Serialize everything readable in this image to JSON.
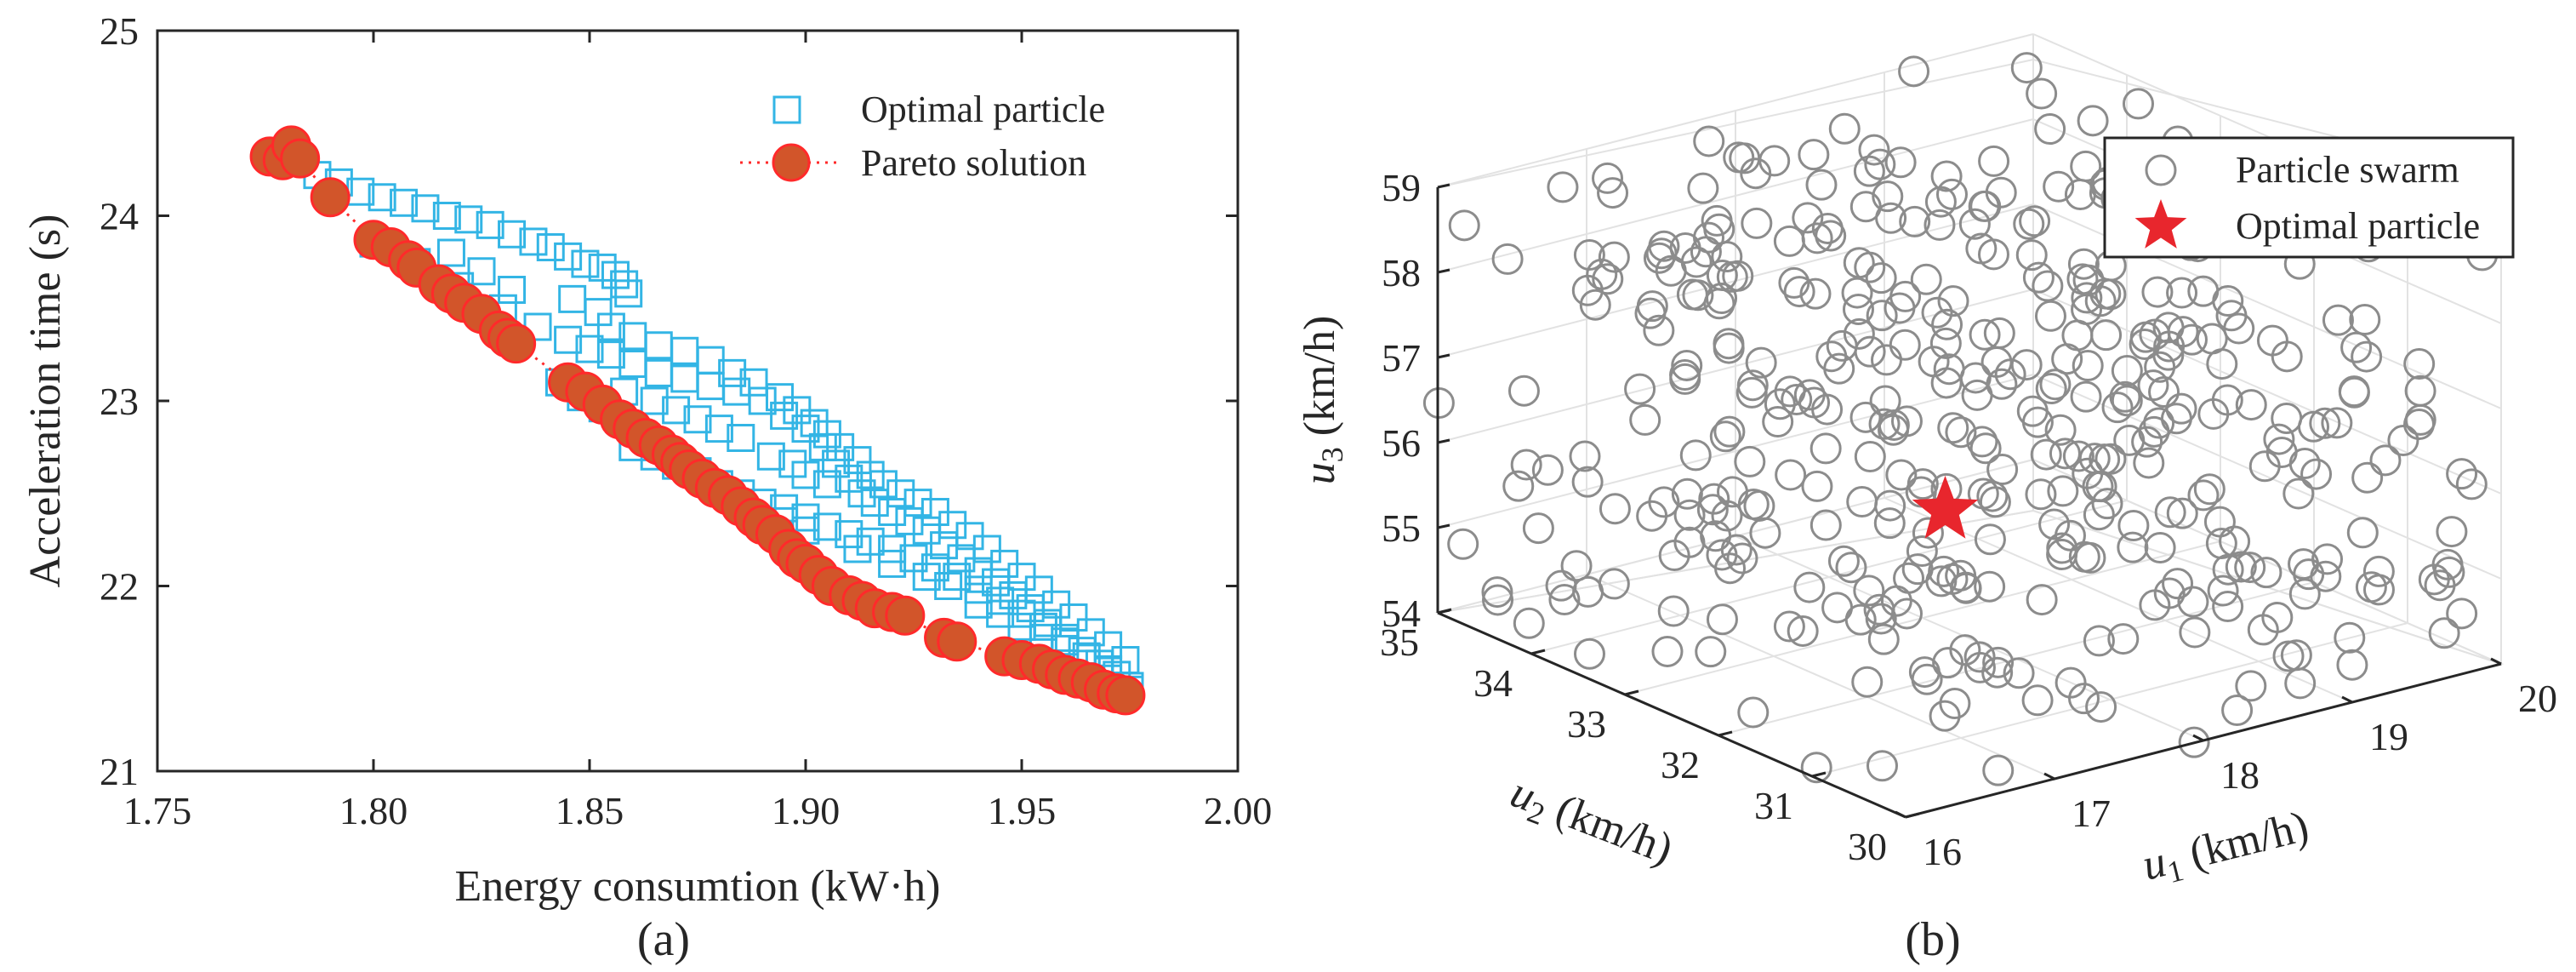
{
  "chart_data": [
    {
      "type": "scatter",
      "caption": "(a)",
      "xlabel": "Energy consumtion (kW·h)",
      "ylabel": "Acceleration time (s)",
      "xlim": [
        1.75,
        2.0
      ],
      "ylim": [
        21,
        25
      ],
      "xticks": [
        "1.75",
        "1.80",
        "1.85",
        "1.90",
        "1.95",
        "2.00"
      ],
      "yticks": [
        "21",
        "22",
        "23",
        "24",
        "25"
      ],
      "legend_position": "top-right",
      "series": [
        {
          "name": "Optimal particle",
          "marker": "square",
          "color": "#33b5e5",
          "points": [
            [
              1.782,
              24.3
            ],
            [
              1.787,
              24.22
            ],
            [
              1.792,
              24.18
            ],
            [
              1.797,
              24.13
            ],
            [
              1.802,
              24.1
            ],
            [
              1.807,
              24.07
            ],
            [
              1.812,
              24.04
            ],
            [
              1.817,
              24.0
            ],
            [
              1.822,
              23.98
            ],
            [
              1.827,
              23.95
            ],
            [
              1.832,
              23.9
            ],
            [
              1.837,
              23.86
            ],
            [
              1.841,
              23.83
            ],
            [
              1.845,
              23.78
            ],
            [
              1.849,
              23.74
            ],
            [
              1.853,
              23.72
            ],
            [
              1.856,
              23.68
            ],
            [
              1.858,
              23.63
            ],
            [
              1.859,
              23.58
            ],
            [
              1.8,
              23.85
            ],
            [
              1.81,
              23.75
            ],
            [
              1.82,
              23.62
            ],
            [
              1.83,
              23.5
            ],
            [
              1.838,
              23.4
            ],
            [
              1.845,
              23.33
            ],
            [
              1.85,
              23.28
            ],
            [
              1.855,
              23.25
            ],
            [
              1.86,
              23.2
            ],
            [
              1.866,
              23.15
            ],
            [
              1.872,
              23.12
            ],
            [
              1.878,
              23.08
            ],
            [
              1.884,
              23.05
            ],
            [
              1.89,
              23.0
            ],
            [
              1.895,
              22.92
            ],
            [
              1.9,
              22.85
            ],
            [
              1.904,
              22.75
            ],
            [
              1.907,
              22.66
            ],
            [
              1.91,
              22.58
            ],
            [
              1.913,
              22.5
            ],
            [
              1.916,
              22.45
            ],
            [
              1.92,
              22.4
            ],
            [
              1.924,
              22.35
            ],
            [
              1.928,
              22.3
            ],
            [
              1.932,
              22.22
            ],
            [
              1.936,
              22.15
            ],
            [
              1.94,
              22.08
            ],
            [
              1.944,
              22.02
            ],
            [
              1.948,
              21.95
            ],
            [
              1.952,
              21.88
            ],
            [
              1.956,
              21.8
            ],
            [
              1.96,
              21.72
            ],
            [
              1.964,
              21.65
            ],
            [
              1.968,
              21.58
            ],
            [
              1.972,
              21.52
            ],
            [
              1.975,
              21.46
            ],
            [
              1.87,
              22.65
            ],
            [
              1.875,
              22.62
            ],
            [
              1.88,
              22.55
            ],
            [
              1.885,
              22.5
            ],
            [
              1.89,
              22.45
            ],
            [
              1.895,
              22.42
            ],
            [
              1.9,
              22.37
            ],
            [
              1.905,
              22.32
            ],
            [
              1.91,
              22.28
            ],
            [
              1.915,
              22.24
            ],
            [
              1.92,
              22.2
            ],
            [
              1.925,
              22.15
            ],
            [
              1.93,
              22.1
            ],
            [
              1.935,
              22.05
            ],
            [
              1.94,
              21.98
            ],
            [
              1.945,
              21.92
            ],
            [
              1.95,
              21.85
            ],
            [
              1.955,
              21.78
            ],
            [
              1.96,
              21.7
            ],
            [
              1.965,
              21.62
            ],
            [
              1.97,
              21.55
            ],
            [
              1.86,
              22.75
            ],
            [
              1.865,
              22.7
            ],
            [
              1.855,
              23.4
            ],
            [
              1.86,
              23.35
            ],
            [
              1.866,
              23.3
            ],
            [
              1.872,
              23.27
            ],
            [
              1.878,
              23.22
            ],
            [
              1.883,
              23.15
            ],
            [
              1.888,
              23.1
            ],
            [
              1.894,
              23.02
            ],
            [
              1.898,
              22.95
            ],
            [
              1.902,
              22.88
            ],
            [
              1.905,
              22.82
            ],
            [
              1.908,
              22.75
            ],
            [
              1.912,
              22.68
            ],
            [
              1.915,
              22.6
            ],
            [
              1.918,
              22.55
            ],
            [
              1.922,
              22.5
            ],
            [
              1.926,
              22.45
            ],
            [
              1.93,
              22.4
            ],
            [
              1.934,
              22.33
            ],
            [
              1.938,
              22.27
            ],
            [
              1.942,
              22.2
            ],
            [
              1.946,
              22.12
            ],
            [
              1.95,
              22.05
            ],
            [
              1.954,
              21.98
            ],
            [
              1.958,
              21.9
            ],
            [
              1.962,
              21.83
            ],
            [
              1.966,
              21.75
            ],
            [
              1.97,
              21.68
            ],
            [
              1.974,
              21.6
            ],
            [
              1.846,
              23.55
            ],
            [
              1.852,
              23.48
            ],
            [
              1.825,
              23.7
            ],
            [
              1.832,
              23.6
            ],
            [
              1.818,
              23.8
            ],
            [
              1.843,
              23.1
            ],
            [
              1.848,
              23.02
            ],
            [
              1.853,
              22.96
            ],
            [
              1.9,
              22.6
            ],
            [
              1.905,
              22.55
            ],
            [
              1.892,
              22.7
            ],
            [
              1.897,
              22.66
            ],
            [
              1.885,
              22.8
            ],
            [
              1.88,
              22.85
            ],
            [
              1.875,
              22.9
            ],
            [
              1.87,
              22.95
            ],
            [
              1.865,
              23.0
            ],
            [
              1.858,
              23.05
            ],
            [
              1.94,
              21.9
            ],
            [
              1.945,
              21.85
            ],
            [
              1.95,
              21.78
            ],
            [
              1.955,
              21.72
            ],
            [
              1.96,
              21.66
            ],
            [
              1.965,
              21.58
            ],
            [
              1.97,
              21.5
            ],
            [
              1.975,
              21.44
            ],
            [
              1.928,
              22.05
            ],
            [
              1.933,
              22.0
            ],
            [
              1.92,
              22.12
            ],
            [
              1.912,
              22.2
            ],
            [
              1.9,
              22.3
            ],
            [
              1.895,
              22.35
            ]
          ]
        },
        {
          "name": "Pareto solution",
          "marker": "circle",
          "color": "#d2552a",
          "edge": "#ff2a2a",
          "line_style": "dotted",
          "points": [
            [
              1.776,
              24.32
            ],
            [
              1.779,
              24.3
            ],
            [
              1.781,
              24.38
            ],
            [
              1.783,
              24.31
            ],
            [
              1.79,
              24.1
            ],
            [
              1.8,
              23.87
            ],
            [
              1.804,
              23.83
            ],
            [
              1.808,
              23.76
            ],
            [
              1.81,
              23.72
            ],
            [
              1.815,
              23.63
            ],
            [
              1.818,
              23.58
            ],
            [
              1.821,
              23.53
            ],
            [
              1.825,
              23.47
            ],
            [
              1.829,
              23.38
            ],
            [
              1.831,
              23.34
            ],
            [
              1.833,
              23.31
            ],
            [
              1.845,
              23.1
            ],
            [
              1.849,
              23.05
            ],
            [
              1.853,
              22.98
            ],
            [
              1.857,
              22.9
            ],
            [
              1.86,
              22.85
            ],
            [
              1.863,
              22.8
            ],
            [
              1.866,
              22.76
            ],
            [
              1.869,
              22.71
            ],
            [
              1.871,
              22.67
            ],
            [
              1.873,
              22.63
            ],
            [
              1.876,
              22.58
            ],
            [
              1.879,
              22.53
            ],
            [
              1.882,
              22.49
            ],
            [
              1.885,
              22.43
            ],
            [
              1.888,
              22.37
            ],
            [
              1.89,
              22.33
            ],
            [
              1.893,
              22.28
            ],
            [
              1.896,
              22.2
            ],
            [
              1.898,
              22.15
            ],
            [
              1.9,
              22.12
            ],
            [
              1.903,
              22.06
            ],
            [
              1.906,
              22.0
            ],
            [
              1.91,
              21.95
            ],
            [
              1.913,
              21.92
            ],
            [
              1.916,
              21.88
            ],
            [
              1.92,
              21.86
            ],
            [
              1.923,
              21.84
            ],
            [
              1.932,
              21.72
            ],
            [
              1.935,
              21.7
            ],
            [
              1.946,
              21.62
            ],
            [
              1.95,
              21.6
            ],
            [
              1.954,
              21.58
            ],
            [
              1.957,
              21.55
            ],
            [
              1.96,
              21.52
            ],
            [
              1.963,
              21.5
            ],
            [
              1.966,
              21.48
            ],
            [
              1.969,
              21.44
            ],
            [
              1.972,
              21.42
            ],
            [
              1.974,
              21.41
            ]
          ]
        }
      ]
    },
    {
      "type": "scatter3d",
      "caption": "(b)",
      "xlabel": "u1 (km/h)",
      "ylabel": "u2 (km/h)",
      "zlabel": "u3 (km/h)",
      "xlim": [
        16,
        20
      ],
      "ylim": [
        30,
        35
      ],
      "zlim": [
        54,
        59
      ],
      "xticks": [
        "16",
        "17",
        "18",
        "19",
        "20"
      ],
      "yticks": [
        "30",
        "31",
        "32",
        "33",
        "34",
        "35"
      ],
      "zticks": [
        "54",
        "55",
        "56",
        "57",
        "58",
        "59"
      ],
      "legend_position": "top-right",
      "series": [
        {
          "name": "Particle swarm",
          "marker": "circle",
          "color": "#8c8c8c",
          "count": 420
        },
        {
          "name": "Optimal particle",
          "marker": "star",
          "color": "#e8262d",
          "points": [
            [
              17.9,
              32.6,
              55.5
            ]
          ]
        }
      ]
    }
  ]
}
